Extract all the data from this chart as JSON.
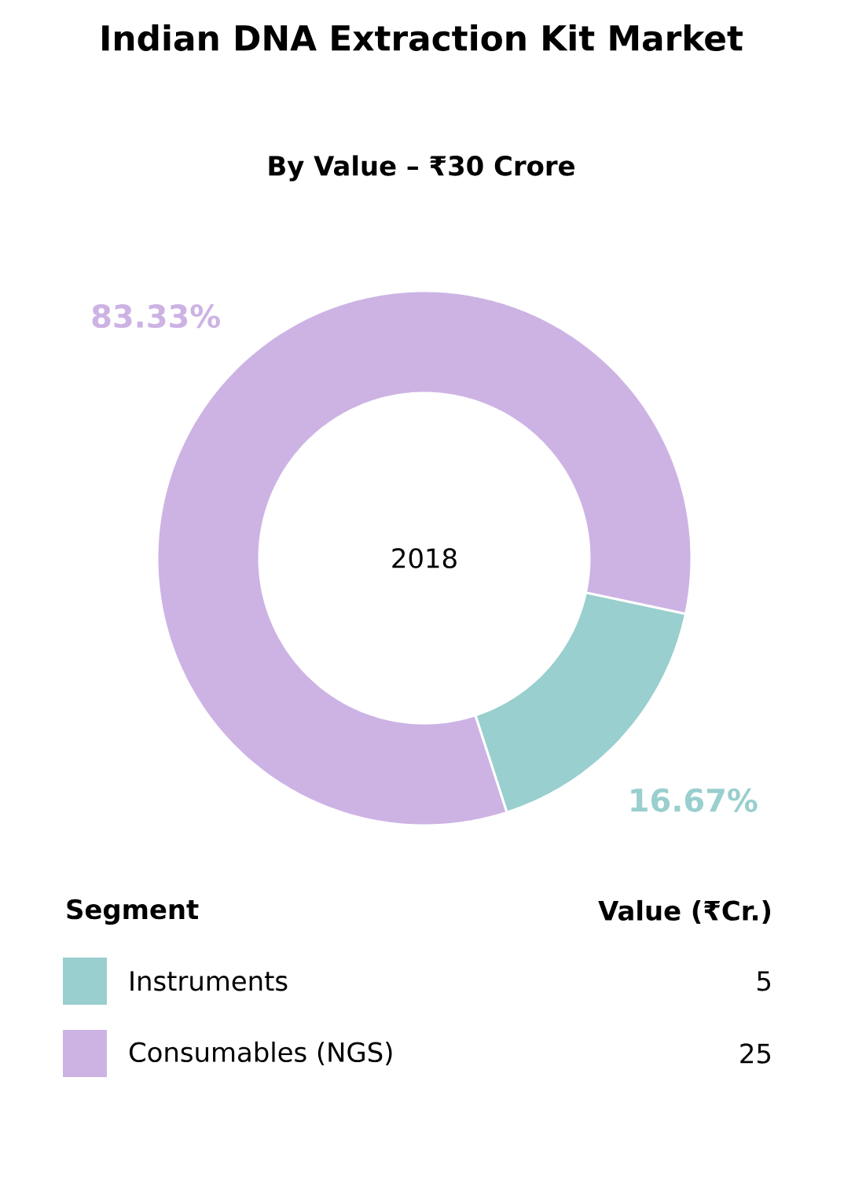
{
  "chart_data": {
    "type": "donut",
    "title": "Indian DNA Extraction Kit Market",
    "subtitle": "By Value – ₹30 Crore",
    "categories": [
      "Instruments",
      "Consumables (NGS)"
    ],
    "values": [
      16.67,
      83.33
    ],
    "colors": [
      "#99cfce",
      "#cdb3e4"
    ],
    "value_labels": [
      "16.67%",
      "83.33%"
    ],
    "legend": "bottom",
    "legend_title": "Segment",
    "annotations": [
      "2018",
      "Value (₹Cr.)",
      "5",
      "25"
    ]
  }
}
